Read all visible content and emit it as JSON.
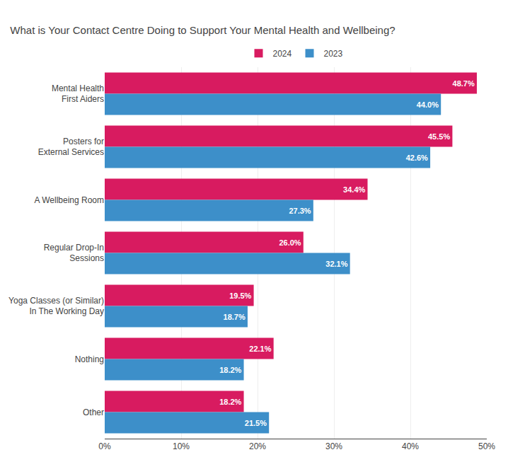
{
  "chart_data": {
    "type": "bar",
    "orientation": "horizontal",
    "title": "What is Your Contact Centre Doing to Support Your Mental Health and Wellbeing?",
    "categories": [
      "Mental Health\nFirst Aiders",
      "Posters for\nExternal Services",
      "A Wellbeing Room",
      "Regular Drop-In\nSessions",
      "Yoga Classes (or Similar)\nIn The Working Day",
      "Nothing",
      "Other"
    ],
    "series": [
      {
        "name": "2024",
        "color": "#D81B60",
        "values": [
          48.7,
          45.5,
          34.4,
          26.0,
          19.5,
          22.1,
          18.2
        ],
        "value_labels": [
          "48.7%",
          "45.5%",
          "34.4%",
          "26.0%",
          "19.5%",
          "22.1%",
          "18.2%"
        ]
      },
      {
        "name": "2023",
        "color": "#3d8fc9",
        "values": [
          44.0,
          42.6,
          27.3,
          32.1,
          18.7,
          18.2,
          21.5
        ],
        "value_labels": [
          "44.0%",
          "42.6%",
          "27.3%",
          "32.1%",
          "18.7%",
          "18.2%",
          "21.5%"
        ]
      }
    ],
    "xlim": [
      0,
      50
    ],
    "xticks": [
      {
        "value": 0,
        "label": "0%"
      },
      {
        "value": 10,
        "label": "10%"
      },
      {
        "value": 20,
        "label": "20%"
      },
      {
        "value": 30,
        "label": "30%"
      },
      {
        "value": 40,
        "label": "40%"
      },
      {
        "value": 50,
        "label": "50%"
      }
    ],
    "data_labels": true,
    "grid": true,
    "legend": "top"
  }
}
